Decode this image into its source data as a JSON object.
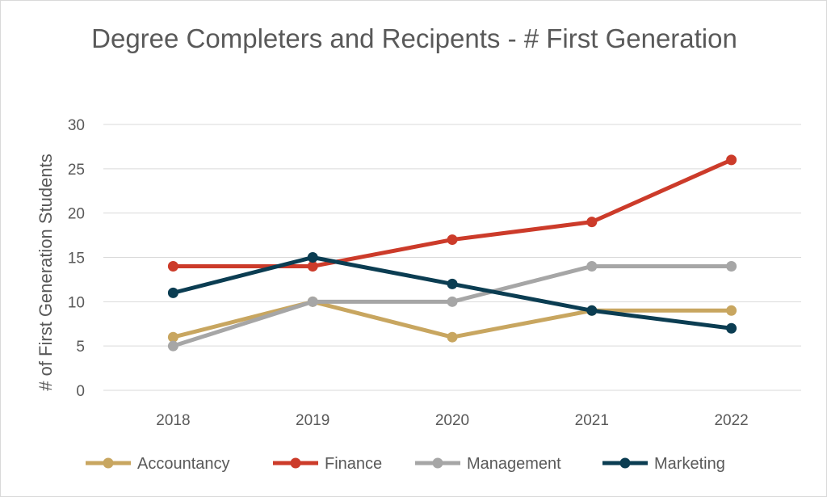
{
  "chart_data": {
    "type": "line",
    "title": "Degree Completers and Recipents - # First Generation",
    "xlabel": "",
    "ylabel": "# of First Generation Students",
    "categories": [
      "2018",
      "2019",
      "2020",
      "2021",
      "2022"
    ],
    "ylim": [
      0,
      30
    ],
    "yticks": [
      "0",
      "5",
      "10",
      "15",
      "20",
      "25",
      "30"
    ],
    "grid": true,
    "legend_position": "bottom",
    "series": [
      {
        "name": "Accountancy",
        "color": "#c8a660",
        "values": [
          6,
          10,
          6,
          9,
          9
        ]
      },
      {
        "name": "Finance",
        "color": "#cc3b2a",
        "values": [
          14,
          14,
          17,
          19,
          26
        ]
      },
      {
        "name": "Management",
        "color": "#a6a6a6",
        "values": [
          5,
          10,
          10,
          14,
          14
        ]
      },
      {
        "name": "Marketing",
        "color": "#0b3d52",
        "values": [
          11,
          15,
          12,
          9,
          7
        ]
      }
    ]
  }
}
